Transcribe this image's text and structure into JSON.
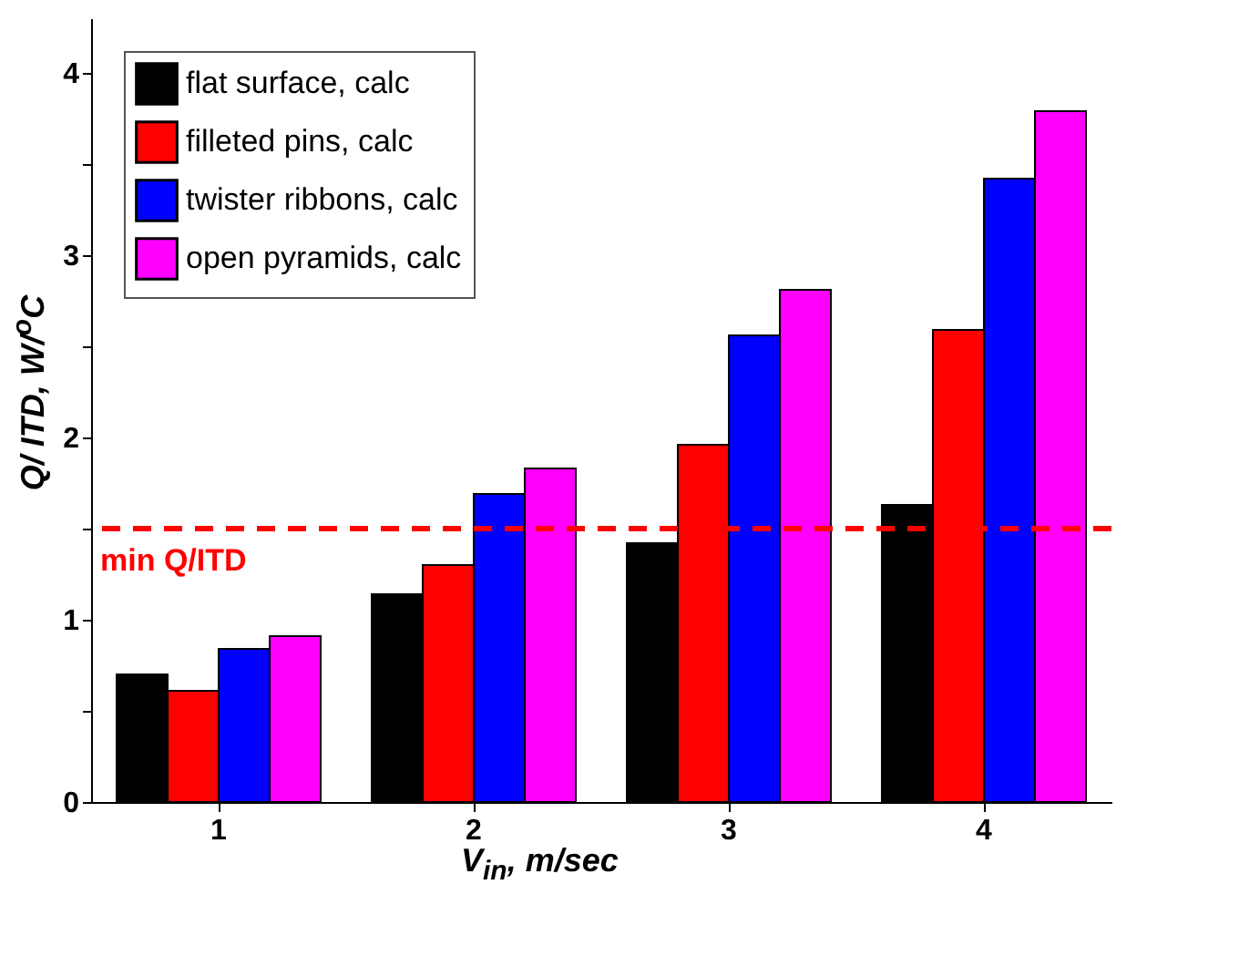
{
  "chart_data": {
    "type": "bar",
    "xlabel": "V$_{in}$,  m/sec",
    "ylabel": "Q/ ITD, W/$^{o}$C",
    "categories": [
      "1",
      "2",
      "3",
      "4"
    ],
    "series": [
      {
        "name": "flat surface, calc",
        "color": "#000000",
        "values": [
          0.7,
          1.14,
          1.42,
          1.63
        ]
      },
      {
        "name": "filleted pins, calc",
        "color": "#ff0000",
        "values": [
          0.61,
          1.3,
          1.96,
          2.59
        ]
      },
      {
        "name": "twister ribbons, calc",
        "color": "#0000ff",
        "values": [
          0.84,
          1.69,
          2.56,
          3.42
        ]
      },
      {
        "name": "open pyramids, calc",
        "color": "#ff00ff",
        "values": [
          0.91,
          1.83,
          2.81,
          3.79
        ]
      }
    ],
    "ylim": [
      0,
      4.3
    ],
    "yticks": [
      0,
      {
        "value": 0.5,
        "label": null
      },
      1,
      {
        "value": 1.5,
        "label": null
      },
      2,
      {
        "value": 2.5,
        "label": null
      },
      3,
      {
        "value": 3.5,
        "label": null
      },
      4
    ],
    "ref_lines": [
      {
        "axis": "y",
        "value": 1.5,
        "label": "min Q/ITD",
        "color": "#ff0000",
        "line_style": "dashed"
      }
    ],
    "legend": "top left",
    "grid": false
  }
}
